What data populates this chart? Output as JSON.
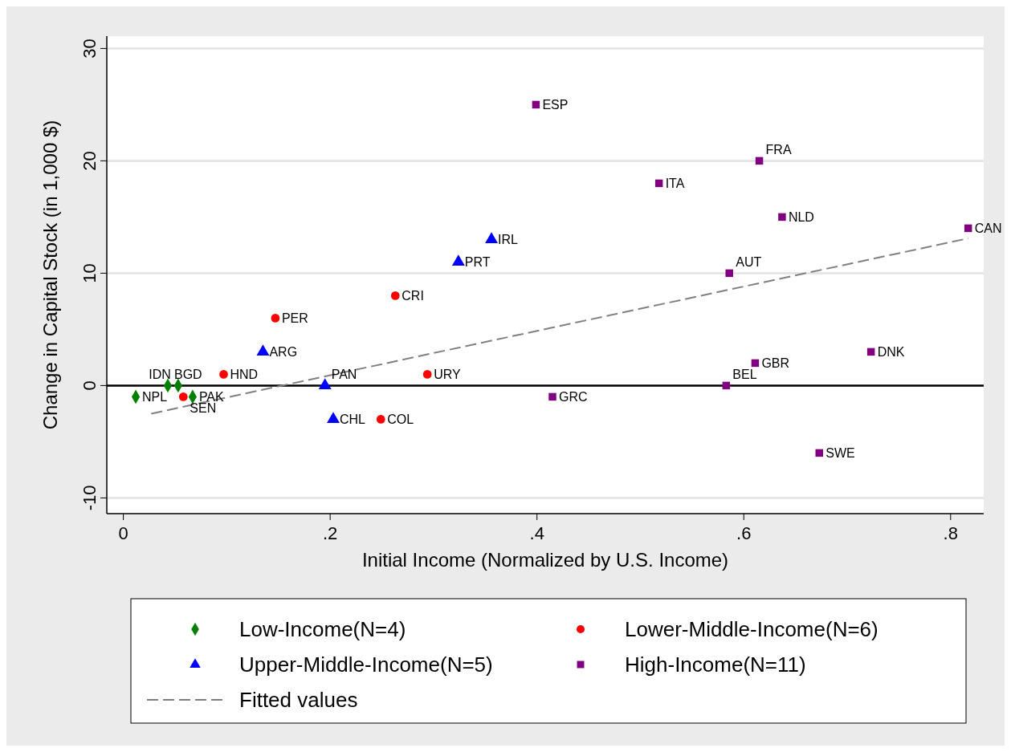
{
  "chart_data": {
    "type": "scatter",
    "xlabel": "Initial Income (Normalized by U.S. Income)",
    "ylabel": "Change in Capital Stock (in 1,000 $)",
    "xlim": [
      -0.016,
      0.832
    ],
    "ylim": [
      -11.4,
      31.1
    ],
    "xticks": [
      0,
      {
        "value": 0.2,
        "label": ".2"
      },
      {
        "value": 0.4,
        "label": ".4"
      },
      {
        "value": 0.6,
        "label": ".6"
      },
      {
        "value": 0.8,
        "label": ".8"
      }
    ],
    "yticks": [
      -10,
      0,
      10,
      20,
      30
    ],
    "grid": "y",
    "legend": "bottom",
    "ref_lines": [
      {
        "axis": "y",
        "value": 0,
        "color": "#000000"
      }
    ],
    "series": [
      {
        "name": "Low-Income(N=4)",
        "color": "#008000",
        "marker": "diamond",
        "x": [
          0.012,
          0.043,
          0.053,
          0.067
        ],
        "values": [
          -1,
          0,
          0,
          -1
        ]
      },
      {
        "name": "Lower-Middle-Income(N=6)",
        "color": "#ff0000",
        "marker": "circle",
        "x": [
          0.058,
          0.097,
          0.147,
          0.263,
          0.294,
          0.249
        ],
        "values": [
          -1,
          1,
          6,
          8,
          1,
          -3
        ]
      },
      {
        "name": "Upper-Middle-Income(N=5)",
        "color": "#0000ff",
        "marker": "triangle",
        "x": [
          0.135,
          0.195,
          0.203,
          0.324,
          0.356
        ],
        "values": [
          3,
          0,
          -3,
          11,
          13
        ]
      },
      {
        "name": "High-Income(N=11)",
        "color": "#800080",
        "marker": "square",
        "x": [
          0.399,
          0.615,
          0.518,
          0.637,
          0.817,
          0.586,
          0.611,
          0.723,
          0.583,
          0.415,
          0.673
        ],
        "values": [
          25,
          20,
          18,
          15,
          14,
          10,
          2,
          3,
          0,
          -1,
          -6
        ]
      },
      {
        "name": "Fitted values",
        "type": "line",
        "color": "#808080",
        "line_style": "dashed",
        "marker": "none",
        "x": [
          0.027,
          0.817
        ],
        "values": [
          -2.5,
          13.1
        ]
      }
    ],
    "annotations": [
      {
        "text": "NPL",
        "x": 0.012,
        "y": -1
      },
      {
        "text": "BGD",
        "x": 0.043,
        "y": 0
      },
      {
        "text": "IDN",
        "x": 0.053,
        "y": 0
      },
      {
        "text": "PAK",
        "x": 0.067,
        "y": -1
      },
      {
        "text": "SEN",
        "x": 0.058,
        "y": -1
      },
      {
        "text": "HND",
        "x": 0.097,
        "y": 1
      },
      {
        "text": "PER",
        "x": 0.147,
        "y": 6
      },
      {
        "text": "CRI",
        "x": 0.263,
        "y": 8
      },
      {
        "text": "URY",
        "x": 0.294,
        "y": 1
      },
      {
        "text": "COL",
        "x": 0.249,
        "y": -3
      },
      {
        "text": "ARG",
        "x": 0.135,
        "y": 3
      },
      {
        "text": "PAN",
        "x": 0.195,
        "y": 0
      },
      {
        "text": "CHL",
        "x": 0.203,
        "y": -3
      },
      {
        "text": "PRT",
        "x": 0.324,
        "y": 11
      },
      {
        "text": "IRL",
        "x": 0.356,
        "y": 13
      },
      {
        "text": "ESP",
        "x": 0.399,
        "y": 25
      },
      {
        "text": "FRA",
        "x": 0.615,
        "y": 20
      },
      {
        "text": "ITA",
        "x": 0.518,
        "y": 18
      },
      {
        "text": "NLD",
        "x": 0.637,
        "y": 15
      },
      {
        "text": "CAN",
        "x": 0.817,
        "y": 14
      },
      {
        "text": "AUT",
        "x": 0.586,
        "y": 10
      },
      {
        "text": "GBR",
        "x": 0.611,
        "y": 2
      },
      {
        "text": "DNK",
        "x": 0.723,
        "y": 3
      },
      {
        "text": "BEL",
        "x": 0.583,
        "y": 0
      },
      {
        "text": "GRC",
        "x": 0.415,
        "y": -1
      },
      {
        "text": "SWE",
        "x": 0.673,
        "y": -6
      }
    ]
  }
}
